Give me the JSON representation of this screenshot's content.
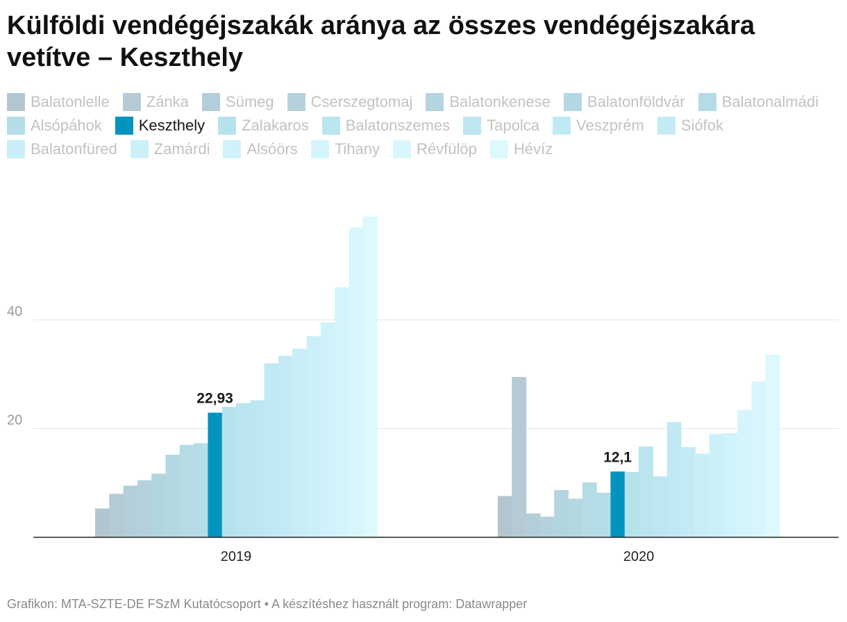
{
  "chart_data": {
    "type": "bar",
    "title": "Külföldi vendégéjszakák aránya az összes vendégéjszakára vetítve – Keszthely",
    "categories": [
      "2019",
      "2020"
    ],
    "highlight": "Keszthely",
    "ylim": [
      0,
      60
    ],
    "yticks": [
      20,
      40
    ],
    "grid": true,
    "legend_position": "top",
    "xlabel": "",
    "ylabel": "",
    "series": [
      {
        "name": "Balatonlelle",
        "color": "#b3c6d0",
        "values": [
          5.3,
          7.6
        ]
      },
      {
        "name": "Zánka",
        "color": "#b5cad4",
        "values": [
          8.0,
          29.5
        ]
      },
      {
        "name": "Sümeg",
        "color": "#b3ced8",
        "values": [
          9.5,
          4.4
        ]
      },
      {
        "name": "Cserszegtomaj",
        "color": "#b5d2dc",
        "values": [
          10.5,
          3.8
        ]
      },
      {
        "name": "Balatonkenese",
        "color": "#b3d5df",
        "values": [
          11.7,
          8.7
        ]
      },
      {
        "name": "Balatonföldvár",
        "color": "#b4d8e3",
        "values": [
          15.2,
          7.1
        ]
      },
      {
        "name": "Balatonalmádi",
        "color": "#b5dbe5",
        "values": [
          17.0,
          10.1
        ]
      },
      {
        "name": "Alsópáhok",
        "color": "#b4dde8",
        "values": [
          17.3,
          8.2
        ]
      },
      {
        "name": "Keszthely",
        "color": "#0294bf",
        "values": [
          22.93,
          12.1
        ]
      },
      {
        "name": "Zalakaros",
        "color": "#b6e2ec",
        "values": [
          24.0,
          12.0
        ]
      },
      {
        "name": "Balatonszemes",
        "color": "#bae4ef",
        "values": [
          24.7,
          16.7
        ]
      },
      {
        "name": "Tapolca",
        "color": "#bde6f1",
        "values": [
          25.2,
          11.2
        ]
      },
      {
        "name": "Veszprém",
        "color": "#c1e9f3",
        "values": [
          32.0,
          21.2
        ]
      },
      {
        "name": "Siófok",
        "color": "#c4ebf5",
        "values": [
          33.4,
          16.6
        ]
      },
      {
        "name": "Balatonfüred",
        "color": "#c8eef7",
        "values": [
          34.7,
          15.4
        ]
      },
      {
        "name": "Zamárdi",
        "color": "#ccf0f9",
        "values": [
          37.0,
          19.0
        ]
      },
      {
        "name": "Alsóörs",
        "color": "#d0f2fa",
        "values": [
          39.5,
          19.2
        ]
      },
      {
        "name": "Tihany",
        "color": "#d4f5fb",
        "values": [
          46.0,
          23.4
        ]
      },
      {
        "name": "Révfülöp",
        "color": "#d8f7fc",
        "values": [
          57.0,
          28.7
        ]
      },
      {
        "name": "Hévíz",
        "color": "#dcf9fd",
        "values": [
          59.0,
          33.6
        ]
      }
    ],
    "data_labels": [
      {
        "series": "Keszthely",
        "category": "2019",
        "text": "22,93"
      },
      {
        "series": "Keszthely",
        "category": "2020",
        "text": "12,1"
      }
    ]
  },
  "footer": {
    "source": "Grafikon: MTA-SZTE-DE FSzM Kutatócsoport • A készítéshez használt program: Datawrapper"
  }
}
